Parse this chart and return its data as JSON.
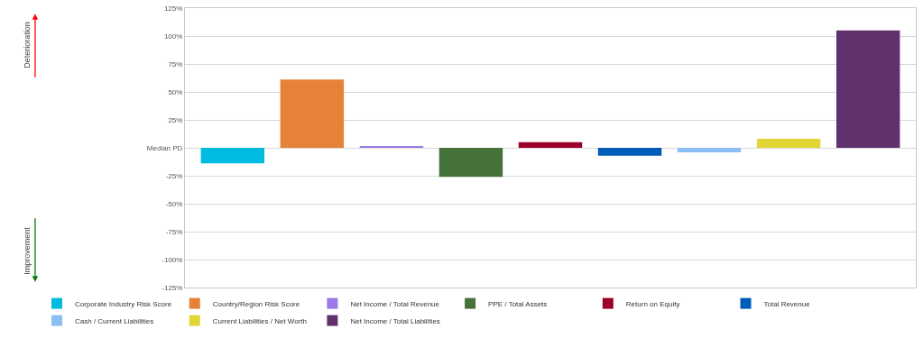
{
  "chart_data": {
    "type": "bar",
    "categories": [
      null,
      null,
      null,
      null,
      null,
      null,
      null,
      null,
      null
    ],
    "series": [
      {
        "name": "Corporate Industry Risk Score",
        "color": "#00bbe0",
        "values": [
          -14,
          null,
          null,
          null,
          null,
          null,
          null,
          null,
          null
        ]
      },
      {
        "name": "Country/Region Risk Score",
        "color": "#e68137",
        "values": [
          null,
          61,
          null,
          null,
          null,
          null,
          null,
          null,
          null
        ]
      },
      {
        "name": "Net Income / Total Revenue",
        "color": "#9b79e6",
        "values": [
          null,
          null,
          1,
          null,
          null,
          null,
          null,
          null,
          null
        ]
      },
      {
        "name": "PPE / Total Assets",
        "color": "#46733a",
        "values": [
          null,
          null,
          null,
          -26,
          null,
          null,
          null,
          null,
          null
        ]
      },
      {
        "name": "Return on Equity",
        "color": "#9a0029",
        "values": [
          null,
          null,
          null,
          null,
          5,
          null,
          null,
          null,
          null
        ]
      },
      {
        "name": "Total Revenue",
        "color": "#005cb8",
        "values": [
          null,
          null,
          null,
          null,
          null,
          -7,
          null,
          null,
          null
        ]
      },
      {
        "name": "Cash / Current Liabilities",
        "color": "#8cbdf5",
        "values": [
          null,
          null,
          null,
          null,
          null,
          null,
          -4,
          null,
          null
        ]
      },
      {
        "name": "Current Liabilities / Net Worth",
        "color": "#e2d635",
        "values": [
          null,
          null,
          null,
          null,
          null,
          null,
          null,
          8,
          null
        ]
      },
      {
        "name": "Net Income / Total Liabilities",
        "color": "#61316e",
        "values": [
          null,
          null,
          null,
          null,
          null,
          null,
          null,
          null,
          105
        ]
      }
    ],
    "ylim": [
      -125,
      125
    ],
    "yticks": [
      {
        "value": -125,
        "label": "-125%"
      },
      {
        "value": -100,
        "label": "-100%"
      },
      {
        "value": -75,
        "label": "-75%"
      },
      {
        "value": -50,
        "label": "-50%"
      },
      {
        "value": -25,
        "label": "-25%"
      },
      {
        "value": 0,
        "label": "Median PD"
      },
      {
        "value": 25,
        "label": "25%"
      },
      {
        "value": 50,
        "label": "50%"
      },
      {
        "value": 75,
        "label": "75%"
      },
      {
        "value": 100,
        "label": "100%"
      },
      {
        "value": 125,
        "label": "125%"
      }
    ],
    "tick_labels": "y",
    "grid": "y",
    "legend": "bottom",
    "annotations": [
      "Deterioration",
      "Improvement"
    ]
  }
}
